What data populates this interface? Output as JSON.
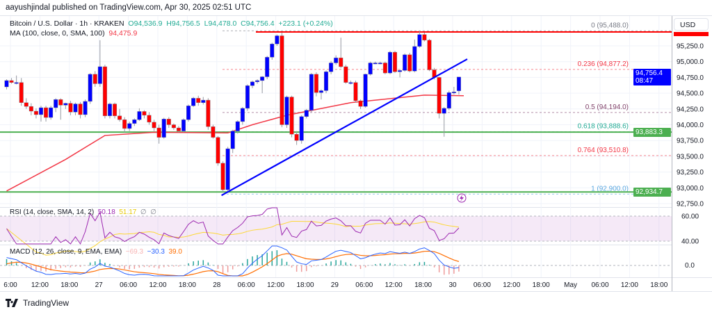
{
  "publisher_line": "aayushjindal published on TradingView.com, Apr 30, 2025 02:51 UTC",
  "symbol": {
    "name": "Bitcoin / U.S. Dollar · 1h · KRAKEN",
    "open": "O94,536.9",
    "high": "H94,756.5",
    "low": "L94,478.0",
    "close": "C94,756.4",
    "change": "+223.1 (+0.24%)"
  },
  "ma_legend": {
    "label": "MA (100, close, 0, SMA, 100)",
    "value": "94,475.9"
  },
  "rsi_legend": {
    "label": "RSI (14, close, SMA, 14, 2)",
    "value": "50.18",
    "ma_value": "51.17",
    "extra1": "∅",
    "extra2": "∅"
  },
  "macd_legend": {
    "label": "MACD (12, 26, close, 9, EMA, EMA)",
    "hist": "−69.3",
    "macd": "−30.3",
    "signal": "39.0"
  },
  "currency_button": "USD",
  "price_axis": [
    "95,250.0",
    "95,000.0",
    "94,750.0",
    "94,500.0",
    "94,250.0",
    "94,000.0",
    "93,750.0",
    "93,500.0",
    "93,250.0",
    "93,000.0",
    "92,750.0"
  ],
  "rsi_axis": [
    "60.00",
    "40.00"
  ],
  "macd_axis": [
    "0.0"
  ],
  "time_axis": [
    "6:00",
    "12:00",
    "18:00",
    "27",
    "06:00",
    "12:00",
    "18:00",
    "28",
    "06:00",
    "12:00",
    "18:00",
    "29",
    "06:00",
    "12:00",
    "18:00",
    "30",
    "06:00",
    "12:00",
    "18:00",
    "May",
    "06:00",
    "12:00",
    "18:00"
  ],
  "tags": {
    "last_price": "94,756.4",
    "countdown": "08:47",
    "support1": "93,883.3",
    "support2": "92,934.7",
    "top": "95,488.0"
  },
  "fib": [
    {
      "label": "0 (95,488.0)",
      "price": 95488,
      "color": "#787b86"
    },
    {
      "label": "0.236 (94,877.2)",
      "price": 94877.2,
      "color": "#f23645"
    },
    {
      "label": "0.5 (94,194.0)",
      "price": 94194,
      "color": "#81426a"
    },
    {
      "label": "0.618 (93,888.6)",
      "price": 93888.6,
      "color": "#22ab94"
    },
    {
      "label": "0.764 (93,510.8)",
      "price": 93510.8,
      "color": "#f23645"
    },
    {
      "label": "1 (92,900.0)",
      "price": 92900,
      "color": "#5ba8e0"
    }
  ],
  "brand": "TradingView",
  "colors": {
    "up": "#0000ff",
    "down": "#ff0000",
    "ma": "#f23645",
    "support": "#4caf50",
    "trend": "#0000ff",
    "rsi": "#9c27b0",
    "rsi_ma": "#fdd835",
    "macd": "#2962ff",
    "signal": "#ff6d00"
  },
  "chart_data": {
    "type": "candlestick",
    "title": "Bitcoin / U.S. Dollar · 1h · KRAKEN",
    "ylim": [
      92700,
      95600
    ],
    "horizontal_lines": [
      95470,
      93883.3,
      92934.7
    ],
    "trendline": [
      [
        44,
        92880
      ],
      [
        93,
        95040
      ]
    ],
    "ma_points": [
      [
        0,
        92950
      ],
      [
        12,
        93450
      ],
      [
        20,
        93830
      ],
      [
        30,
        93880
      ],
      [
        45,
        93870
      ],
      [
        50,
        94000
      ],
      [
        57,
        94150
      ],
      [
        70,
        94350
      ],
      [
        85,
        94470
      ],
      [
        93,
        94460
      ]
    ],
    "ohlc": [
      [
        94600,
        94720,
        94560,
        94700
      ],
      [
        94700,
        94740,
        94650,
        94670
      ],
      [
        94670,
        94780,
        94640,
        94670
      ],
      [
        94670,
        94740,
        94300,
        94350
      ],
      [
        94350,
        94420,
        94250,
        94290
      ],
      [
        94290,
        94340,
        94150,
        94215
      ],
      [
        94215,
        94260,
        94100,
        94160
      ],
      [
        94160,
        94300,
        94050,
        94270
      ],
      [
        94270,
        94300,
        94050,
        94115
      ],
      [
        94115,
        94300,
        94080,
        94270
      ],
      [
        94270,
        94420,
        94200,
        94400
      ],
      [
        94400,
        94420,
        94080,
        94310
      ],
      [
        94310,
        94350,
        94250,
        94340
      ],
      [
        94340,
        94380,
        94150,
        94200
      ],
      [
        94200,
        94350,
        94150,
        94330
      ],
      [
        94330,
        94360,
        94100,
        94160
      ],
      [
        94160,
        94400,
        94120,
        94370
      ],
      [
        94370,
        94820,
        94330,
        94800
      ],
      [
        94800,
        94850,
        94600,
        94650
      ],
      [
        94650,
        95340,
        94600,
        94920
      ],
      [
        94920,
        94950,
        94100,
        94140
      ],
      [
        94140,
        94350,
        94100,
        94330
      ],
      [
        94330,
        94350,
        94100,
        94140
      ],
      [
        94140,
        94250,
        94050,
        94080
      ],
      [
        94080,
        94120,
        93880,
        93940
      ],
      [
        93940,
        94050,
        93900,
        94020
      ],
      [
        94020,
        94100,
        93980,
        94080
      ],
      [
        94080,
        94260,
        94060,
        94210
      ],
      [
        94210,
        94230,
        94100,
        94150
      ],
      [
        94150,
        94200,
        94000,
        94040
      ],
      [
        94040,
        94080,
        93900,
        93950
      ],
      [
        93950,
        94000,
        93700,
        93800
      ],
      [
        93800,
        94110,
        93780,
        94090
      ],
      [
        94090,
        94120,
        93950,
        94000
      ],
      [
        94000,
        94020,
        93920,
        93950
      ],
      [
        93950,
        93980,
        93880,
        93900
      ],
      [
        93900,
        94100,
        93880,
        94080
      ],
      [
        94080,
        94320,
        94050,
        94300
      ],
      [
        94300,
        94440,
        94280,
        94420
      ],
      [
        94420,
        94460,
        94300,
        94350
      ],
      [
        94350,
        94440,
        94320,
        94390
      ],
      [
        94390,
        94420,
        93920,
        93970
      ],
      [
        93970,
        94000,
        93780,
        93800
      ],
      [
        93800,
        93820,
        93350,
        93390
      ],
      [
        93390,
        93420,
        92930,
        92970
      ],
      [
        92970,
        93650,
        92920,
        93620
      ],
      [
        93620,
        93920,
        93550,
        93900
      ],
      [
        93900,
        94070,
        93860,
        94050
      ],
      [
        94050,
        94280,
        94000,
        94260
      ],
      [
        94260,
        94640,
        94220,
        94620
      ],
      [
        94620,
        94700,
        94580,
        94680
      ],
      [
        94680,
        94720,
        94650,
        94700
      ],
      [
        94700,
        94770,
        94500,
        94760
      ],
      [
        94760,
        95090,
        94720,
        95070
      ],
      [
        95070,
        95300,
        95030,
        95280
      ],
      [
        95280,
        95430,
        95250,
        95410
      ],
      [
        95410,
        95460,
        93960,
        94000
      ],
      [
        94000,
        94460,
        93950,
        94440
      ],
      [
        94440,
        94460,
        93800,
        93850
      ],
      [
        93850,
        93900,
        93680,
        93750
      ],
      [
        93750,
        94150,
        93700,
        94130
      ],
      [
        94130,
        94250,
        94100,
        94230
      ],
      [
        94230,
        94820,
        94200,
        94800
      ],
      [
        94800,
        94830,
        94450,
        94510
      ],
      [
        94510,
        94560,
        94400,
        94540
      ],
      [
        94540,
        94860,
        94500,
        94840
      ],
      [
        94840,
        95010,
        94800,
        94980
      ],
      [
        94980,
        95100,
        94950,
        95060
      ],
      [
        95060,
        95380,
        94900,
        94920
      ],
      [
        94920,
        94950,
        94650,
        94670
      ],
      [
        94670,
        94700,
        94640,
        94670
      ],
      [
        94670,
        94700,
        94350,
        94380
      ],
      [
        94380,
        94400,
        94250,
        94290
      ],
      [
        94290,
        94810,
        94270,
        94800
      ],
      [
        94800,
        95000,
        94780,
        94980
      ],
      [
        94980,
        95000,
        94960,
        94980
      ],
      [
        94980,
        95000,
        94960,
        94980
      ],
      [
        94980,
        95000,
        94800,
        94820
      ],
      [
        94820,
        95170,
        94800,
        95150
      ],
      [
        95150,
        95170,
        94820,
        94840
      ],
      [
        94840,
        94880,
        94750,
        94860
      ],
      [
        94860,
        95130,
        94840,
        95110
      ],
      [
        95110,
        95140,
        94830,
        94850
      ],
      [
        94850,
        95350,
        94830,
        95240
      ],
      [
        95240,
        95480,
        95220,
        95430
      ],
      [
        95430,
        95460,
        95320,
        95340
      ],
      [
        95340,
        95360,
        94850,
        94870
      ],
      [
        94870,
        94900,
        94720,
        94750
      ],
      [
        94750,
        94760,
        94100,
        94180
      ],
      [
        94180,
        94280,
        93810,
        94260
      ],
      [
        94260,
        94540,
        94230,
        94510
      ],
      [
        94510,
        94600,
        94480,
        94520
      ],
      [
        94536.9,
        94756.5,
        94478,
        94756.4
      ]
    ]
  }
}
